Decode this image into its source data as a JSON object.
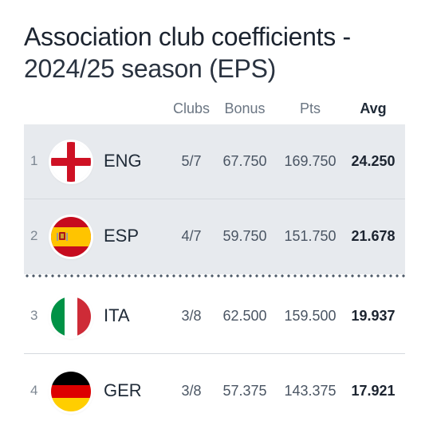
{
  "title": {
    "line1": "Association club coefficients -",
    "line2": "2024/25 season (EPS)"
  },
  "columns": {
    "clubs": "Clubs",
    "bonus": "Bonus",
    "pts": "Pts",
    "avg": "Avg"
  },
  "rows": [
    {
      "rank": "1",
      "code": "ENG",
      "flag": "england-flag-icon",
      "clubs": "5/7",
      "bonus": "67.750",
      "pts": "169.750",
      "avg": "24.250"
    },
    {
      "rank": "2",
      "code": "ESP",
      "flag": "spain-flag-icon",
      "clubs": "4/7",
      "bonus": "59.750",
      "pts": "151.750",
      "avg": "21.678"
    },
    {
      "rank": "3",
      "code": "ITA",
      "flag": "italy-flag-icon",
      "clubs": "3/8",
      "bonus": "62.500",
      "pts": "159.500",
      "avg": "19.937"
    },
    {
      "rank": "4",
      "code": "GER",
      "flag": "germany-flag-icon",
      "clubs": "3/8",
      "bonus": "57.375",
      "pts": "143.375",
      "avg": "17.921"
    }
  ],
  "colors": {
    "shaded_row": "#e7eaee",
    "separator": "#d5d9de",
    "dotted_line": "#4b5867"
  }
}
